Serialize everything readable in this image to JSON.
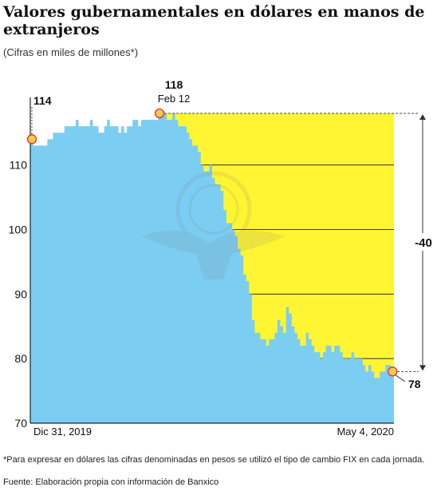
{
  "title": "Valores gubernamentales en dólares en manos de extranjeros",
  "subtitle": "(Cifras en miles de millones*)",
  "footnote": "*Para expresar en dólares las cifras denominadas en pesos se utilizó el tipo de cambio FIX en cada jornada.",
  "source": "Fuente: Elaboración propia con información de Banxico",
  "colors": {
    "area": "#7ccdf2",
    "gap": "#fff533",
    "highlight": "#f2c94c",
    "marker_stroke": "#e03030",
    "axis": "#222222"
  },
  "chart_data": {
    "type": "area",
    "ylim": [
      70,
      118
    ],
    "yticks": [
      70,
      80,
      90,
      100,
      110
    ],
    "xlabels": [
      "Dic 31, 2019",
      "May 4, 2020"
    ],
    "peak_level": 118,
    "values": [
      114,
      113,
      113,
      113,
      113,
      113,
      114,
      114,
      115,
      115,
      115,
      115,
      116,
      116,
      116,
      116,
      117,
      116,
      116,
      116,
      116,
      117,
      116,
      116,
      115,
      115,
      116,
      117,
      116,
      116,
      116,
      115,
      116,
      115,
      116,
      116,
      117,
      117,
      116,
      117,
      117,
      117,
      117,
      117,
      117,
      118,
      118,
      118,
      117,
      117,
      118,
      117,
      116,
      116,
      116,
      115,
      114,
      113,
      113,
      112,
      110,
      109,
      109,
      110,
      108,
      107,
      107,
      106,
      103,
      101,
      101,
      100,
      99,
      97,
      96,
      93,
      92,
      90,
      86,
      84,
      84,
      83,
      83,
      82,
      83,
      83,
      84,
      86,
      85,
      84,
      88,
      87,
      85,
      84,
      83,
      82,
      82,
      84,
      83,
      82,
      81,
      81,
      80,
      81,
      82,
      82,
      81,
      82,
      82,
      81,
      80,
      80,
      80,
      81,
      80,
      80,
      80,
      79,
      78,
      79,
      78,
      77,
      77,
      78,
      78,
      79,
      79,
      78
    ],
    "annotations": {
      "start": {
        "value": "114"
      },
      "peak": {
        "value": "118",
        "date": "Feb 12"
      },
      "end": {
        "value": "78"
      },
      "change": "-40"
    }
  }
}
